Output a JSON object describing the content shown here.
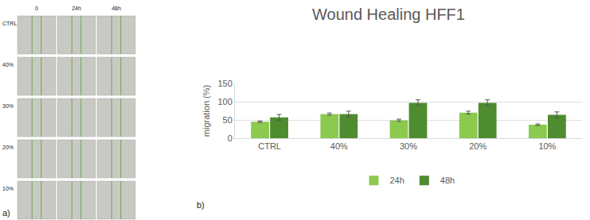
{
  "image_panel": {
    "label": "a)",
    "columns": [
      "0",
      "24h",
      "48h"
    ],
    "rows": [
      "CTRL",
      "40%",
      "30%",
      "20%",
      "10%"
    ]
  },
  "chart_data": {
    "type": "bar",
    "title": "Wound Healing HFF1",
    "y_label": "migration (%)",
    "categories": [
      "CTRL",
      "40%",
      "30%",
      "20%",
      "10%"
    ],
    "series": [
      {
        "name": "24h",
        "color": "#8cc94f",
        "values": [
          45,
          66,
          49,
          70,
          37
        ],
        "errors": [
          2,
          3,
          3,
          4,
          2
        ]
      },
      {
        "name": "48h",
        "color": "#4e8c2f",
        "values": [
          57,
          66,
          97,
          97,
          64
        ],
        "errors": [
          8,
          8,
          8,
          8,
          8
        ]
      }
    ],
    "ylim": [
      0,
      150
    ],
    "yticks": [
      0,
      50,
      100,
      150
    ],
    "grid": true,
    "legend": "bottom",
    "annotations": [
      {
        "text": "b)"
      }
    ]
  }
}
